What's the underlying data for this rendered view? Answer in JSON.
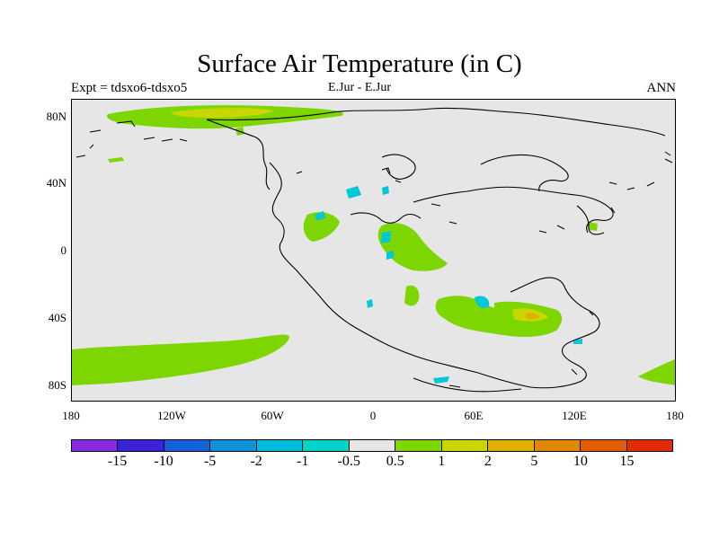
{
  "title": "Surface Air Temperature (in C)",
  "subtitle_left": "Expt = tdsxo6-tdsxo5",
  "subtitle_center": "E.Jur - E.Jur",
  "subtitle_right": "ANN",
  "lat_ticks": [
    "80N",
    "40N",
    "0",
    "40S",
    "80S"
  ],
  "lon_ticks": [
    "180",
    "120W",
    "60W",
    "0",
    "60E",
    "120E",
    "180"
  ],
  "colorbar": {
    "colors": [
      "#8a2be2",
      "#3b22d6",
      "#1462d9",
      "#0f93d8",
      "#00bcd8",
      "#00d4c8",
      "#e6e6e6",
      "#7ed600",
      "#c9d600",
      "#e0b000",
      "#e08800",
      "#e05e00",
      "#e02a00"
    ],
    "labels": [
      "-15",
      "-10",
      "-5",
      "-2",
      "-1",
      "-0.5",
      "0.5",
      "1",
      "2",
      "5",
      "10",
      "15"
    ]
  },
  "map_colors": {
    "background": "#e6e6e6",
    "green": "#7ed600",
    "yellow": "#c9d600",
    "orange": "#e0b000",
    "cyan": "#00c8d8",
    "coast": "#000000"
  }
}
